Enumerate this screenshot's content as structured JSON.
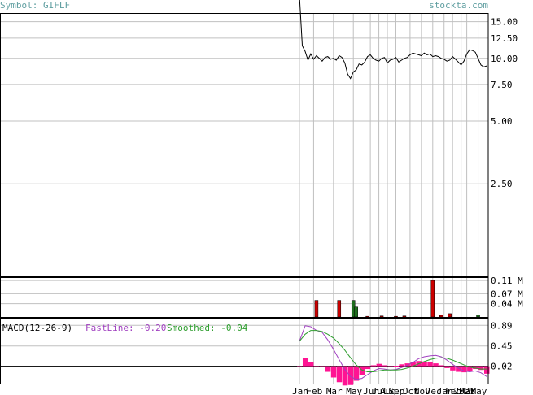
{
  "header": {
    "symbol": "Symbol: GIFLF",
    "site": "stockta.com"
  },
  "colors": {
    "fastline": "#a040c0",
    "smoothed": "#2e9e2e",
    "histogram": "#ff1493",
    "volume_up": "#1e6e1e",
    "volume_down": "#cc0000",
    "header_text": "#5f9ea0",
    "grid": "#c0c0c0"
  },
  "macd": {
    "label": "MACD(12-26-9)",
    "fastline_label": "FastLine: -0.20",
    "smoothed_label": "Smoothed: -0.04"
  },
  "chart_data": [
    {
      "type": "line",
      "name": "price",
      "scale": "log",
      "y_ticks": [
        "15.00",
        "12.50",
        "10.00",
        "7.50",
        "5.00",
        "2.50"
      ],
      "y_tick_values": [
        15,
        12.5,
        10,
        7.5,
        5,
        2.5
      ],
      "ylim": [
        0.9,
        16.5
      ],
      "x": [
        0,
        1,
        2,
        3,
        4,
        5,
        6,
        7,
        8,
        9,
        10,
        11,
        12,
        13,
        14,
        15,
        16,
        17,
        18,
        19,
        20,
        21,
        22,
        23,
        24,
        25,
        26,
        27,
        28,
        29,
        30,
        31,
        32,
        33,
        34,
        35,
        36,
        37,
        38,
        39,
        40,
        41,
        42,
        43,
        44,
        45,
        46,
        47,
        48,
        49,
        50,
        51,
        52,
        53,
        54,
        55,
        56,
        57,
        58,
        59,
        60,
        61,
        62,
        63,
        64,
        65,
        66
      ],
      "values": [
        60,
        11.5,
        10.8,
        9.8,
        10.5,
        9.9,
        10.3,
        10.0,
        9.7,
        10.1,
        10.2,
        9.9,
        10.0,
        9.8,
        10.3,
        10.1,
        9.5,
        8.4,
        8.0,
        8.6,
        8.8,
        9.4,
        9.3,
        9.6,
        10.2,
        10.4,
        10.0,
        9.8,
        9.7,
        10.0,
        10.1,
        9.5,
        9.8,
        9.9,
        10.1,
        9.6,
        9.8,
        10.0,
        10.1,
        10.4,
        10.6,
        10.5,
        10.4,
        10.3,
        10.6,
        10.4,
        10.5,
        10.2,
        10.3,
        10.2,
        10.0,
        9.9,
        9.7,
        9.8,
        10.2,
        9.9,
        9.6,
        9.3,
        9.7,
        10.5,
        11.0,
        10.9,
        10.7,
        10.0,
        9.3,
        9.1,
        9.2
      ],
      "grid": true
    },
    {
      "type": "bar",
      "name": "volume",
      "y_ticks": [
        "0.11 M",
        "0.07 M",
        "0.04 M"
      ],
      "y_tick_values": [
        0.11,
        0.07,
        0.04
      ],
      "ylim": [
        0,
        0.12
      ],
      "x": [
        6,
        14,
        19,
        20,
        24,
        29,
        34,
        37,
        47,
        50,
        53,
        63
      ],
      "values": [
        0.05,
        0.05,
        0.05,
        0.03,
        0.002,
        0.003,
        0.002,
        0.003,
        0.11,
        0.005,
        0.01,
        0.006
      ],
      "direction": [
        "down",
        "down",
        "up",
        "up",
        "down",
        "down",
        "down",
        "down",
        "down",
        "down",
        "down",
        "up"
      ]
    },
    {
      "type": "line",
      "name": "macd",
      "y_ticks": [
        "0.89",
        "0.45",
        "0.02"
      ],
      "y_tick_values": [
        0.89,
        0.45,
        0.02
      ],
      "ylim": [
        -0.35,
        1.05
      ],
      "x": [
        0,
        2,
        4,
        6,
        8,
        10,
        12,
        14,
        16,
        18,
        20,
        22,
        24,
        26,
        28,
        30,
        32,
        34,
        36,
        38,
        40,
        42,
        44,
        46,
        48,
        50,
        52,
        54,
        56,
        58,
        60,
        62,
        64,
        66
      ],
      "series": [
        {
          "name": "FastLine",
          "values": [
            0.55,
            0.88,
            0.86,
            0.78,
            0.74,
            0.58,
            0.38,
            0.16,
            -0.05,
            -0.2,
            -0.26,
            -0.24,
            -0.16,
            -0.08,
            -0.03,
            -0.04,
            -0.06,
            -0.05,
            -0.01,
            0.04,
            0.1,
            0.18,
            0.22,
            0.24,
            0.25,
            0.22,
            0.15,
            0.06,
            -0.02,
            -0.08,
            -0.1,
            -0.08,
            -0.12,
            -0.2
          ]
        },
        {
          "name": "Smoothed",
          "values": [
            0.55,
            0.7,
            0.78,
            0.78,
            0.76,
            0.7,
            0.62,
            0.5,
            0.36,
            0.2,
            0.05,
            -0.06,
            -0.1,
            -0.1,
            -0.08,
            -0.06,
            -0.06,
            -0.06,
            -0.05,
            -0.02,
            0.02,
            0.07,
            0.12,
            0.16,
            0.19,
            0.2,
            0.19,
            0.15,
            0.1,
            0.05,
            0.0,
            -0.02,
            -0.04,
            -0.04
          ]
        }
      ],
      "histogram": [
        0.0,
        0.18,
        0.08,
        0.0,
        -0.02,
        -0.12,
        -0.24,
        -0.34,
        -0.41,
        -0.4,
        -0.31,
        -0.18,
        -0.06,
        0.02,
        0.05,
        0.02,
        0.0,
        0.01,
        0.04,
        0.06,
        0.08,
        0.11,
        0.1,
        0.08,
        0.06,
        0.02,
        -0.04,
        -0.09,
        -0.12,
        -0.13,
        -0.1,
        -0.06,
        -0.08,
        -0.16
      ]
    }
  ],
  "x_axis": {
    "labels": [
      "Jan",
      "Feb",
      "Mar",
      "May",
      "Jun",
      "Jul",
      "Aug",
      "Sep",
      "Oct",
      "Nov",
      "Dec",
      "Jan",
      "Feb",
      "2025",
      "Mar",
      "May"
    ],
    "positions": [
      0,
      5,
      12,
      19,
      25,
      28,
      31,
      34,
      39,
      43,
      47,
      51,
      54,
      57,
      59,
      63
    ]
  }
}
